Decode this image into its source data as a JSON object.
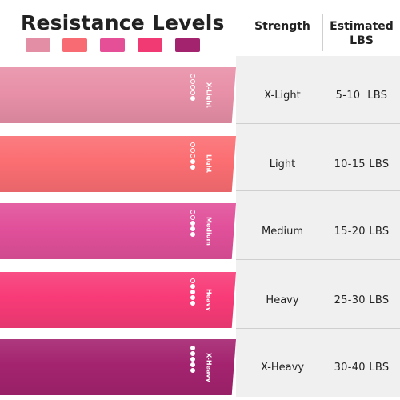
{
  "title": "Resistance Levels",
  "headers": {
    "strength": "Strength",
    "estimated_lbs": "Estimated LBS"
  },
  "swatch_colors": [
    "#e38ea5",
    "#f86b72",
    "#e44f97",
    "#f13a74",
    "#a3236f"
  ],
  "bands": [
    {
      "label": "X-Light",
      "color": "#e890a8",
      "filled_dots": 1,
      "strength": "X-Light",
      "lbs": "5-10  LBS"
    },
    {
      "label": "Light",
      "color": "#fb6e72",
      "filled_dots": 2,
      "strength": "Light",
      "lbs": "10-15 LBS"
    },
    {
      "label": "Medium",
      "color": "#e1509a",
      "filled_dots": 3,
      "strength": "Medium",
      "lbs": "15-20 LBS"
    },
    {
      "label": "Heavy",
      "color": "#f83b78",
      "filled_dots": 4,
      "strength": "Heavy",
      "lbs": "25-30 LBS"
    },
    {
      "label": "X-Heavy",
      "color": "#a4236f",
      "filled_dots": 5,
      "strength": "X-Heavy",
      "lbs": "30-40 LBS"
    }
  ]
}
